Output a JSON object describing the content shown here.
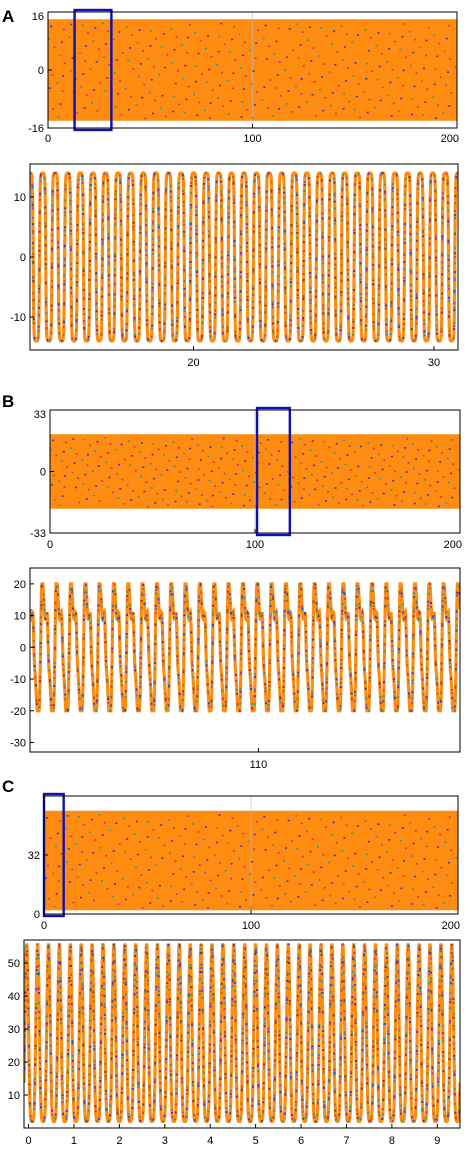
{
  "panel_labels": [
    "A",
    "B",
    "C"
  ],
  "colors": {
    "fill": "#ff8c10",
    "series": [
      "#ff8c10",
      "#2a9e83",
      "#3a3ab8",
      "#c03a6e",
      "#e0a020"
    ],
    "highlight_box": "#1010b0",
    "axis": "#000000",
    "grid_line": "#bbbbbb"
  },
  "chart_data": [
    {
      "panel": "A",
      "type": "area",
      "title": "",
      "xlabel": "",
      "ylabel": "",
      "xlim": [
        0,
        200
      ],
      "ylim": [
        -16,
        16
      ],
      "xticks": [
        0,
        100,
        200
      ],
      "yticks": [
        -16,
        0,
        16
      ],
      "signal": {
        "min": -14,
        "max": 14
      },
      "highlight": {
        "x": [
          13,
          31
        ]
      }
    },
    {
      "panel": "A",
      "type": "line",
      "title": "",
      "xlabel": "",
      "ylabel": "",
      "xlim": [
        13.2,
        31
      ],
      "ylim": [
        -15.5,
        15.5
      ],
      "xticks": [
        20,
        30
      ],
      "yticks": [
        -10,
        0,
        10
      ],
      "signal": {
        "kind": "relaxation",
        "min": -14,
        "max": 14,
        "cycles": 34
      }
    },
    {
      "panel": "B",
      "type": "area",
      "title": "",
      "xlabel": "",
      "ylabel": "",
      "xlim": [
        0,
        200
      ],
      "ylim": [
        -33,
        33
      ],
      "xticks": [
        0,
        100,
        200
      ],
      "yticks": [
        -33,
        0,
        33
      ],
      "signal": {
        "min": -20,
        "max": 20
      },
      "highlight": {
        "x": [
          101,
          117
        ]
      }
    },
    {
      "panel": "B",
      "type": "line",
      "title": "",
      "xlabel": "",
      "ylabel": "",
      "xlim": [
        101.5,
        117.5
      ],
      "ylim": [
        -33,
        25
      ],
      "xticks": [
        110
      ],
      "yticks": [
        -30,
        -20,
        -10,
        0,
        10,
        20
      ],
      "signal": {
        "kind": "double-peak",
        "min": -20,
        "max": 20,
        "cycles": 30
      }
    },
    {
      "panel": "C",
      "type": "area",
      "title": "",
      "xlabel": "",
      "ylabel": "",
      "xlim": [
        0,
        200
      ],
      "ylim": [
        0,
        64
      ],
      "xticks": [
        0,
        100,
        200
      ],
      "yticks": [
        0,
        32
      ],
      "signal": {
        "min": 2,
        "max": 56
      },
      "highlight": {
        "x": [
          0,
          9.5
        ]
      }
    },
    {
      "panel": "C",
      "type": "line",
      "title": "",
      "xlabel": "",
      "ylabel": "",
      "xlim": [
        -0.1,
        9.5
      ],
      "ylim": [
        0,
        57
      ],
      "xticks": [
        0,
        1,
        2,
        3,
        4,
        5,
        6,
        7,
        8,
        9
      ],
      "yticks": [
        10,
        20,
        30,
        40,
        50
      ],
      "signal": {
        "kind": "spike",
        "min": 2,
        "max": 56,
        "cycles": 40
      }
    }
  ]
}
